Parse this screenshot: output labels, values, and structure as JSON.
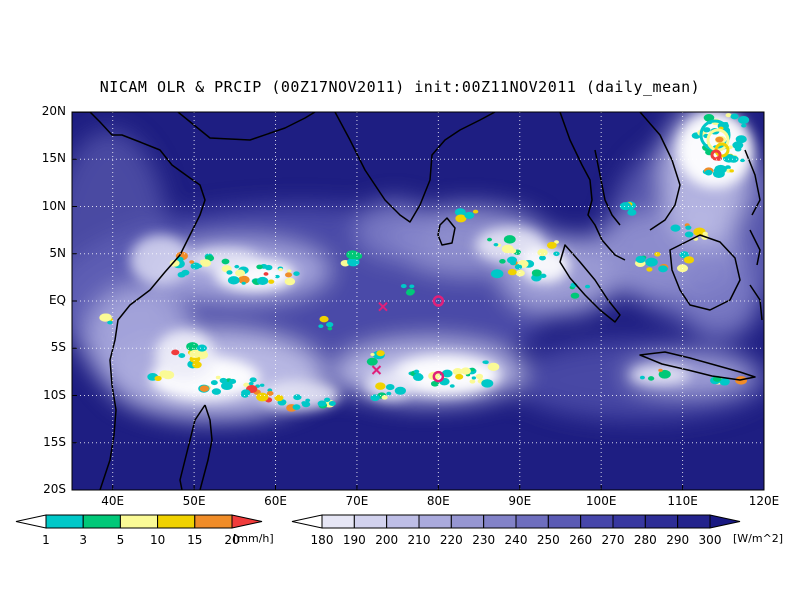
{
  "title": "NICAM OLR & PRCIP (00Z17NOV2011) init:00Z11NOV2011 (daily_mean)",
  "map": {
    "lat_labels": [
      "20N",
      "15N",
      "10N",
      "5N",
      "EQ",
      "5S",
      "10S",
      "15S",
      "20S"
    ],
    "lon_labels": [
      "40E",
      "50E",
      "60E",
      "70E",
      "80E",
      "90E",
      "100E",
      "110E",
      "120E"
    ],
    "lat_range": [
      -20,
      20
    ],
    "lon_range": [
      35,
      120
    ],
    "ocean_color": "#1e1e82",
    "markers": [
      {
        "type": "x",
        "lon": 73.2,
        "lat": -0.6,
        "color": "#e0207a"
      },
      {
        "type": "x",
        "lon": 72.4,
        "lat": -7.3,
        "color": "#e0207a"
      },
      {
        "type": "o",
        "lon": 80.0,
        "lat": 0.0,
        "color": "#e0207a"
      },
      {
        "type": "o",
        "lon": 80.0,
        "lat": -8.0,
        "color": "#e0207a"
      }
    ]
  },
  "precip_colorbar": {
    "ticks": [
      "1",
      "3",
      "5",
      "10",
      "15",
      "20"
    ],
    "unit": "[mm/h]",
    "colors": [
      "#00c8c8",
      "#00c878",
      "#fafa96",
      "#f0d200",
      "#f08c28",
      "#f03c3c"
    ]
  },
  "olr_colorbar": {
    "ticks": [
      "180",
      "190",
      "200",
      "210",
      "220",
      "230",
      "240",
      "250",
      "260",
      "270",
      "280",
      "290",
      "300"
    ],
    "unit": "[W/m^2]",
    "colors": [
      "#e6e6f5",
      "#d2d2ee",
      "#bebee6",
      "#aaaadd",
      "#9696d2",
      "#8282c8",
      "#6e6ebe",
      "#5a5ab4",
      "#4646aa",
      "#3737a0",
      "#2d2d96",
      "#23238c",
      "#191982"
    ]
  }
}
